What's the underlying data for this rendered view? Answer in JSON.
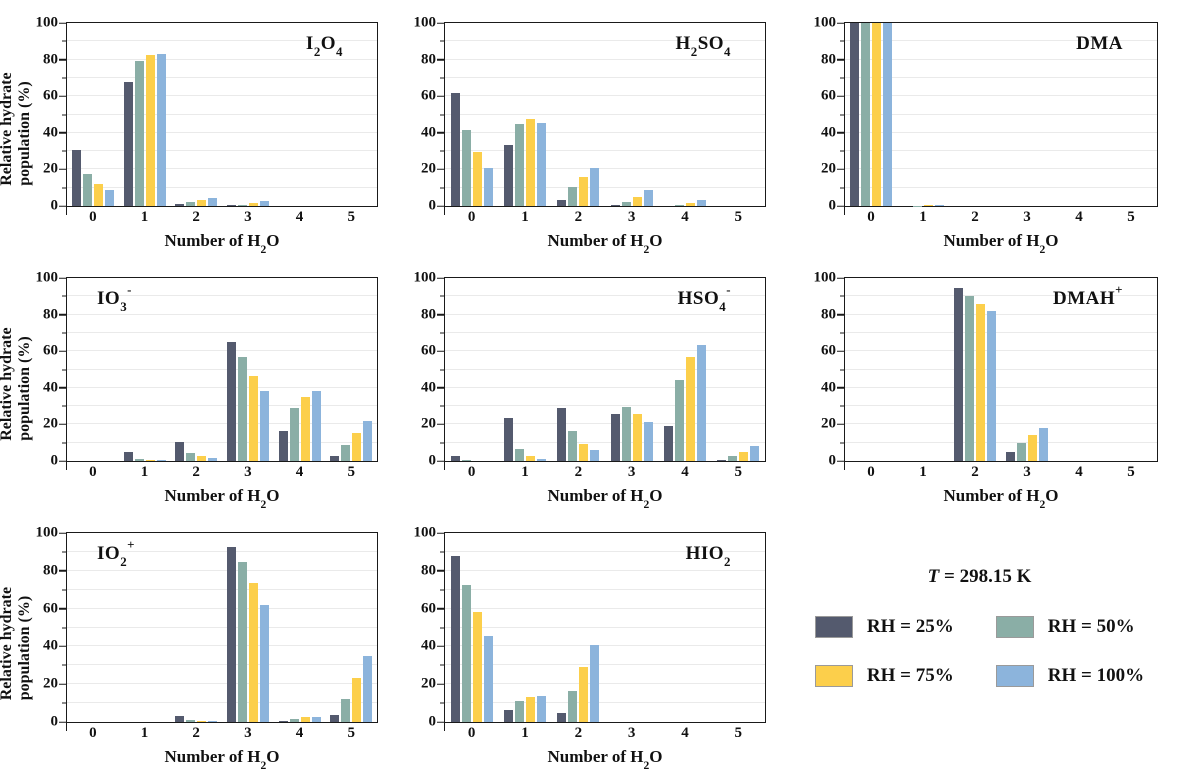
{
  "figure": {
    "y_axis_title": "Relative hydrate population (%)",
    "x_axis_title_segments": [
      {
        "t": "Number of H"
      },
      {
        "t": "2",
        "sub": true
      },
      {
        "t": "O"
      }
    ],
    "y_tick_labels": [
      "0",
      "20",
      "40",
      "60",
      "80",
      "100"
    ],
    "x_tick_labels": [
      "0",
      "1",
      "2",
      "3",
      "4",
      "5"
    ],
    "grid": "horizontal lines every 10%",
    "axis_color": "#1a1a1a",
    "gridline_color": "#eaeaea"
  },
  "legend": {
    "title_segments": [
      {
        "t": "T",
        "i": true
      },
      {
        "t": " = 298.15 K"
      }
    ],
    "entries": [
      {
        "label": "RH = 25%",
        "color": "#545a6e"
      },
      {
        "label": "RH = 50%",
        "color": "#8aaea6"
      },
      {
        "label": "RH = 75%",
        "color": "#fccf4b"
      },
      {
        "label": "RH = 100%",
        "color": "#8cb4dc"
      }
    ]
  },
  "chart_data": [
    {
      "type": "bar",
      "name": "I2O4",
      "title_pos": "right",
      "title_segments": [
        {
          "t": "I"
        },
        {
          "t": "2",
          "sub": true
        },
        {
          "t": "O"
        },
        {
          "t": "4",
          "sub": true
        }
      ],
      "categories": [
        0,
        1,
        2,
        3,
        4,
        5
      ],
      "ylim": [
        0,
        100
      ],
      "series": [
        {
          "name": "RH = 25%",
          "values": [
            30.5,
            68,
            1,
            0.4,
            0,
            0
          ]
        },
        {
          "name": "RH = 50%",
          "values": [
            17.5,
            79,
            2,
            0.7,
            0,
            0
          ]
        },
        {
          "name": "RH = 75%",
          "values": [
            12,
            82.5,
            3.5,
            1.5,
            0,
            0
          ]
        },
        {
          "name": "RH = 100%",
          "values": [
            9,
            83,
            4.5,
            2.5,
            0,
            0
          ]
        }
      ]
    },
    {
      "type": "bar",
      "name": "H2SO4",
      "title_pos": "right",
      "title_segments": [
        {
          "t": "H"
        },
        {
          "t": "2",
          "sub": true
        },
        {
          "t": "SO"
        },
        {
          "t": "4",
          "sub": true
        }
      ],
      "categories": [
        0,
        1,
        2,
        3,
        4,
        5
      ],
      "ylim": [
        0,
        100
      ],
      "series": [
        {
          "name": "RH = 25%",
          "values": [
            62,
            33.5,
            3.5,
            0.3,
            0,
            0
          ]
        },
        {
          "name": "RH = 50%",
          "values": [
            41.5,
            45,
            10.5,
            2,
            0.5,
            0
          ]
        },
        {
          "name": "RH = 75%",
          "values": [
            29.5,
            47.5,
            16,
            5,
            1.5,
            0
          ]
        },
        {
          "name": "RH = 100%",
          "values": [
            21,
            45.5,
            21,
            8.5,
            3.5,
            0
          ]
        }
      ]
    },
    {
      "type": "bar",
      "name": "DMA",
      "title_pos": "right",
      "title_segments": [
        {
          "t": "DMA"
        }
      ],
      "categories": [
        0,
        1,
        2,
        3,
        4,
        5
      ],
      "ylim": [
        0,
        100
      ],
      "series": [
        {
          "name": "RH = 25%",
          "values": [
            100,
            0,
            0,
            0,
            0,
            0
          ]
        },
        {
          "name": "RH = 50%",
          "values": [
            100,
            0.2,
            0,
            0,
            0,
            0
          ]
        },
        {
          "name": "RH = 75%",
          "values": [
            100,
            0.3,
            0,
            0,
            0,
            0
          ]
        },
        {
          "name": "RH = 100%",
          "values": [
            100,
            0.5,
            0,
            0,
            0,
            0
          ]
        }
      ]
    },
    {
      "type": "bar",
      "name": "IO3-",
      "title_pos": "left",
      "title_segments": [
        {
          "t": "IO"
        },
        {
          "t": "3",
          "sub": true
        },
        {
          "t": "-",
          "sup": true
        }
      ],
      "categories": [
        0,
        1,
        2,
        3,
        4,
        5
      ],
      "ylim": [
        0,
        100
      ],
      "series": [
        {
          "name": "RH = 25%",
          "values": [
            0,
            5,
            10.5,
            65,
            16.5,
            2.5
          ]
        },
        {
          "name": "RH = 50%",
          "values": [
            0,
            1,
            4.5,
            57,
            29,
            8.5
          ]
        },
        {
          "name": "RH = 75%",
          "values": [
            0,
            0.4,
            2.5,
            46.5,
            35,
            15.5
          ]
        },
        {
          "name": "RH = 100%",
          "values": [
            0,
            0.3,
            1.5,
            38,
            38.5,
            22
          ]
        }
      ]
    },
    {
      "type": "bar",
      "name": "HSO4-",
      "title_pos": "right",
      "title_segments": [
        {
          "t": "HSO"
        },
        {
          "t": "4",
          "sub": true
        },
        {
          "t": "-",
          "sup": true
        }
      ],
      "categories": [
        0,
        1,
        2,
        3,
        4,
        5
      ],
      "ylim": [
        0,
        100
      ],
      "series": [
        {
          "name": "RH = 25%",
          "values": [
            2.5,
            23.5,
            29,
            25.5,
            19,
            0.5
          ]
        },
        {
          "name": "RH = 50%",
          "values": [
            0.3,
            6.5,
            16.5,
            29.5,
            44,
            2.5
          ]
        },
        {
          "name": "RH = 75%",
          "values": [
            0,
            2.5,
            9.5,
            25.5,
            57,
            5
          ]
        },
        {
          "name": "RH = 100%",
          "values": [
            0,
            1.2,
            6,
            21.5,
            63.5,
            8
          ]
        }
      ]
    },
    {
      "type": "bar",
      "name": "DMAH+",
      "title_pos": "right",
      "title_segments": [
        {
          "t": "DMAH"
        },
        {
          "t": "+",
          "sup": true
        }
      ],
      "categories": [
        0,
        1,
        2,
        3,
        4,
        5
      ],
      "ylim": [
        0,
        100
      ],
      "series": [
        {
          "name": "RH = 25%",
          "values": [
            0,
            0,
            94.5,
            5,
            0,
            0
          ]
        },
        {
          "name": "RH = 50%",
          "values": [
            0,
            0,
            90,
            10,
            0,
            0
          ]
        },
        {
          "name": "RH = 75%",
          "values": [
            0,
            0,
            86,
            14,
            0,
            0
          ]
        },
        {
          "name": "RH = 100%",
          "values": [
            0,
            0,
            82,
            18,
            0,
            0
          ]
        }
      ]
    },
    {
      "type": "bar",
      "name": "IO2+",
      "title_pos": "left",
      "title_segments": [
        {
          "t": "IO"
        },
        {
          "t": "2",
          "sub": true
        },
        {
          "t": "+",
          "sup": true
        }
      ],
      "categories": [
        0,
        1,
        2,
        3,
        4,
        5
      ],
      "ylim": [
        0,
        100
      ],
      "series": [
        {
          "name": "RH = 25%",
          "values": [
            0,
            0,
            3,
            92.5,
            0.8,
            3.5
          ]
        },
        {
          "name": "RH = 50%",
          "values": [
            0,
            0,
            1.2,
            84.5,
            1.7,
            12
          ]
        },
        {
          "name": "RH = 75%",
          "values": [
            0,
            0,
            0.8,
            73.5,
            2.5,
            23.5
          ]
        },
        {
          "name": "RH = 100%",
          "values": [
            0,
            0,
            0.4,
            62,
            2.8,
            35
          ]
        }
      ]
    },
    {
      "type": "bar",
      "name": "HIO2",
      "title_pos": "right",
      "title_segments": [
        {
          "t": "HIO"
        },
        {
          "t": "2",
          "sub": true
        }
      ],
      "categories": [
        0,
        1,
        2,
        3,
        4,
        5
      ],
      "ylim": [
        0,
        100
      ],
      "series": [
        {
          "name": "RH = 25%",
          "values": [
            88,
            6.5,
            5,
            0,
            0,
            0
          ]
        },
        {
          "name": "RH = 50%",
          "values": [
            72.5,
            11,
            16.5,
            0,
            0,
            0
          ]
        },
        {
          "name": "RH = 75%",
          "values": [
            58,
            13.5,
            29,
            0,
            0,
            0
          ]
        },
        {
          "name": "RH = 100%",
          "values": [
            45.5,
            14,
            40.5,
            0,
            0,
            0
          ]
        }
      ]
    }
  ]
}
